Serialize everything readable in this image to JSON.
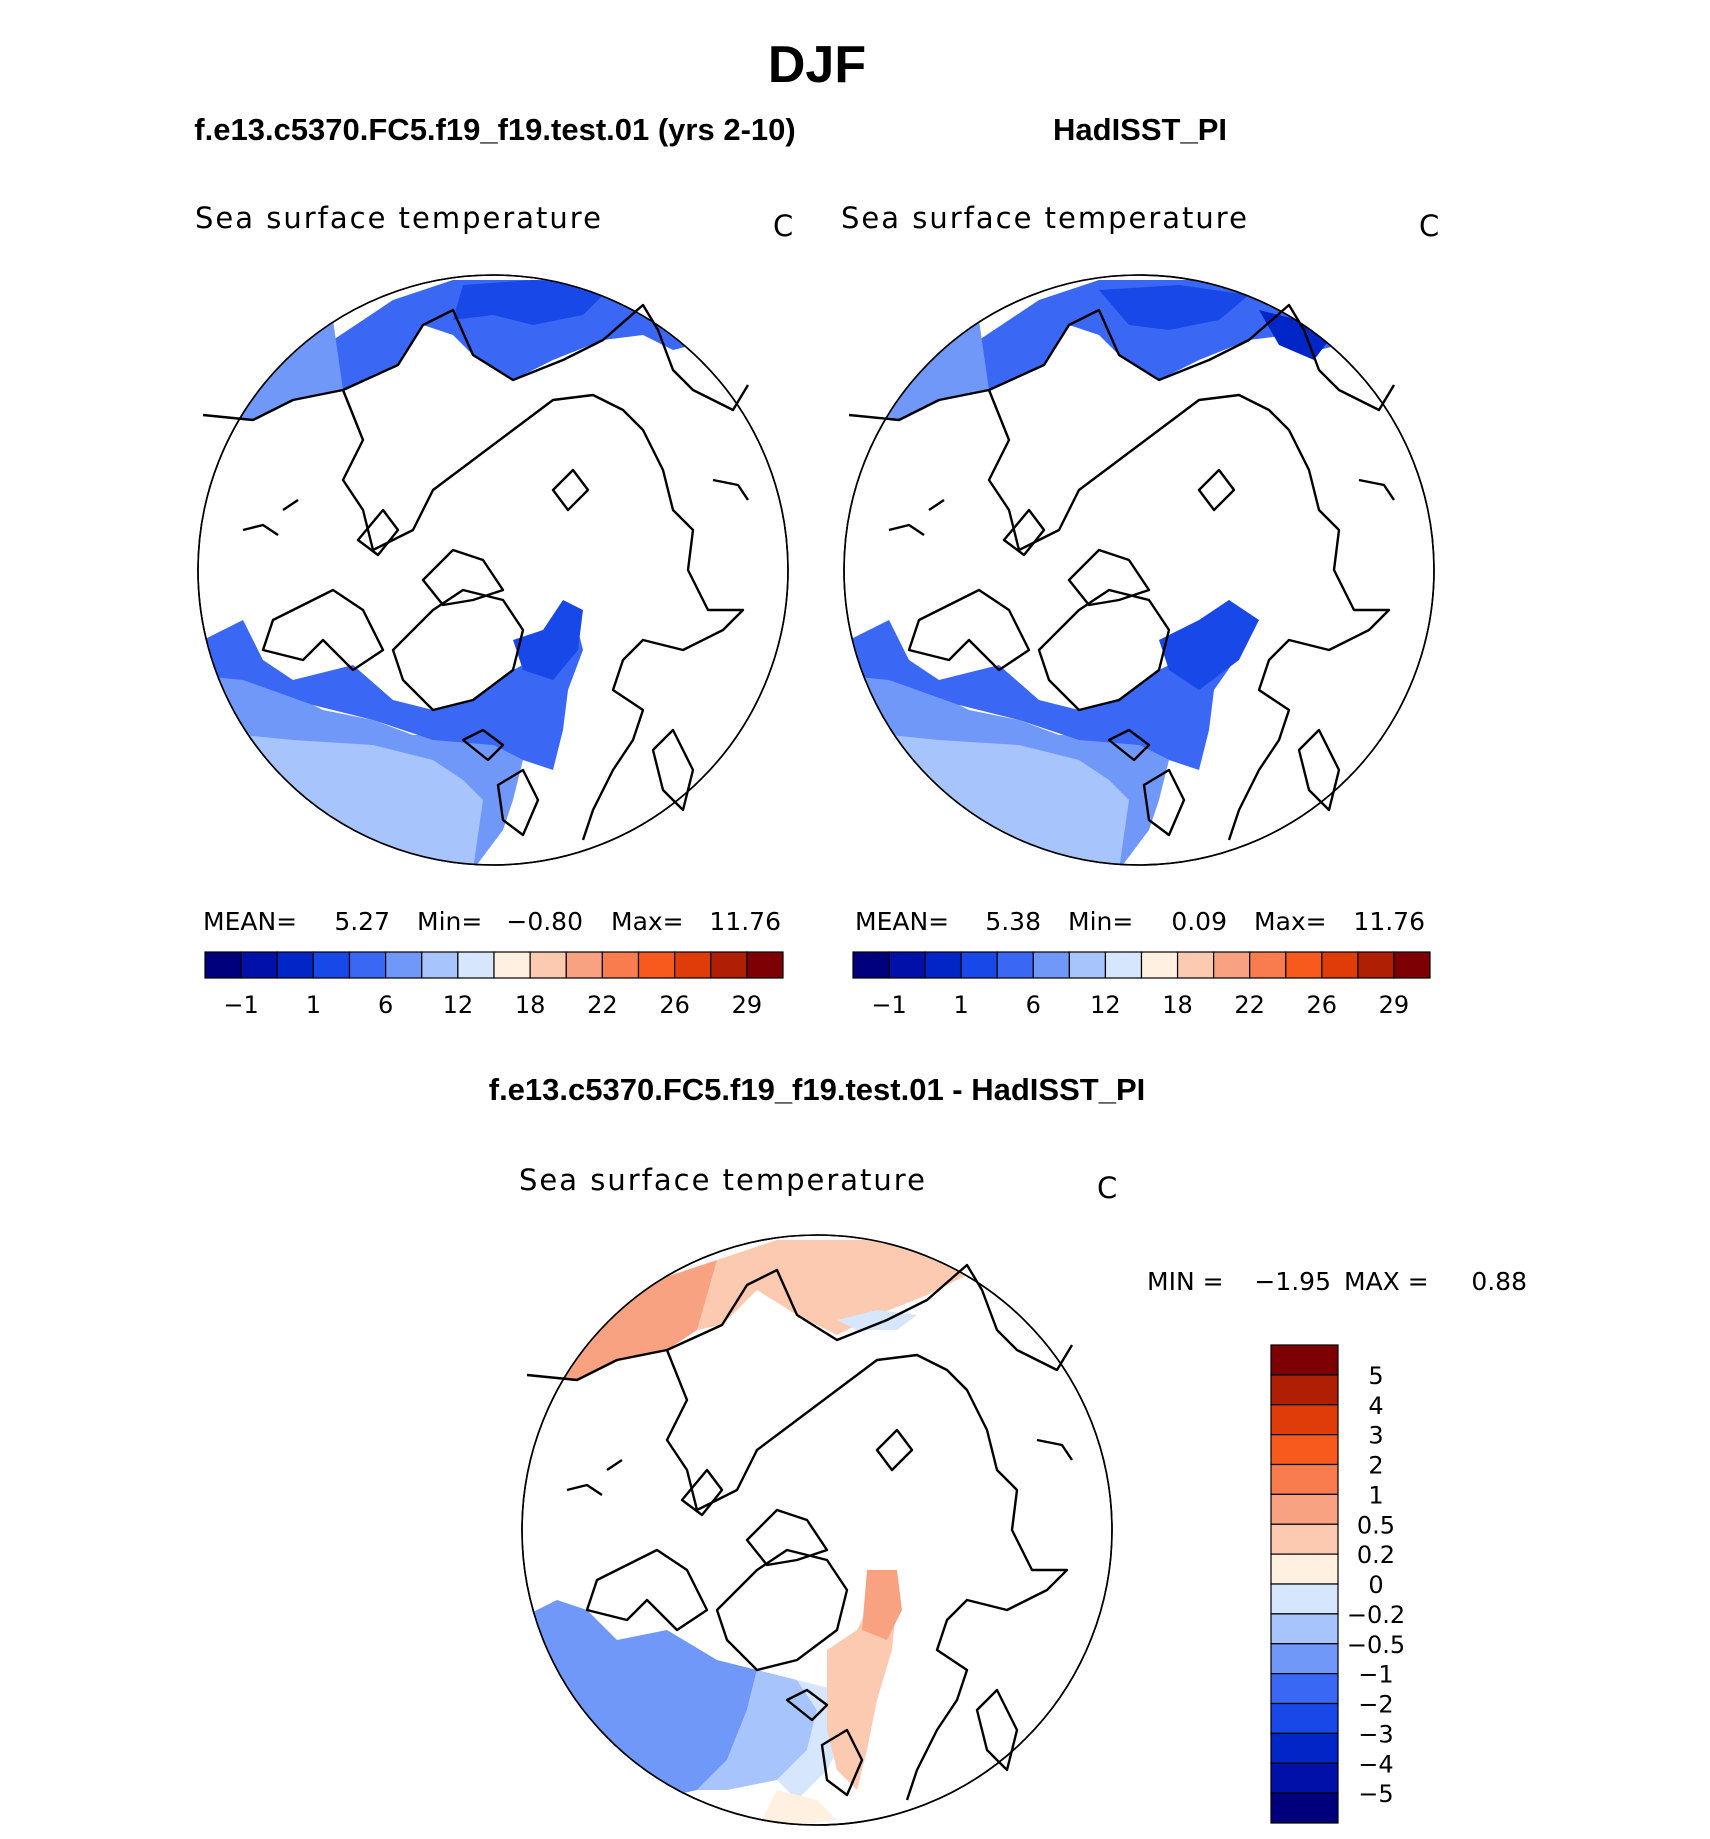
{
  "figure_title": "DJF",
  "chart_data": [
    {
      "type": "heatmap",
      "panel": "model",
      "case_title": "f.e13.c5370.FC5.f19_f19.test.01 (yrs 2-10)",
      "variable": "Sea surface temperature",
      "units": "C",
      "stats": {
        "mean_label": "MEAN=",
        "mean": "5.27",
        "min_label": "Min=",
        "min": "−0.80",
        "max_label": "Max=",
        "max": "11.76"
      },
      "colorbar": {
        "orientation": "horizontal",
        "levels": [
          -1,
          1,
          6,
          12,
          18,
          22,
          26,
          29
        ],
        "tick_labels": [
          "−1",
          "1",
          "6",
          "12",
          "18",
          "22",
          "26",
          "29"
        ],
        "colors": [
          "#00007c",
          "#0010a8",
          "#0026c8",
          "#1848e8",
          "#3a68f4",
          "#7098f8",
          "#a8c4fc",
          "#d6e6fc",
          "#fff0e0",
          "#fccab0",
          "#f8a282",
          "#f87c4e",
          "#f85a1e",
          "#e03c0a",
          "#b01e04",
          "#7c0004"
        ]
      }
    },
    {
      "type": "heatmap",
      "panel": "observations",
      "case_title": "HadISST_PI",
      "variable": "Sea surface temperature",
      "units": "C",
      "stats": {
        "mean_label": "MEAN=",
        "mean": "5.38",
        "min_label": "Min=",
        "min": "0.09",
        "max_label": "Max=",
        "max": "11.76"
      },
      "colorbar": {
        "orientation": "horizontal",
        "levels": [
          -1,
          1,
          6,
          12,
          18,
          22,
          26,
          29
        ],
        "tick_labels": [
          "−1",
          "1",
          "6",
          "12",
          "18",
          "22",
          "26",
          "29"
        ],
        "colors": [
          "#00007c",
          "#0010a8",
          "#0026c8",
          "#1848e8",
          "#3a68f4",
          "#7098f8",
          "#a8c4fc",
          "#d6e6fc",
          "#fff0e0",
          "#fccab0",
          "#f8a282",
          "#f87c4e",
          "#f85a1e",
          "#e03c0a",
          "#b01e04",
          "#7c0004"
        ]
      }
    },
    {
      "type": "heatmap",
      "panel": "difference",
      "case_title": "f.e13.c5370.FC5.f19_f19.test.01 - HadISST_PI",
      "variable": "Sea surface temperature",
      "units": "C",
      "stats": {
        "min_label": "MIN =",
        "min": "−1.95",
        "max_label": "MAX =",
        "max": "0.88"
      },
      "colorbar": {
        "orientation": "vertical",
        "levels": [
          5,
          4,
          3,
          2,
          1,
          0.5,
          0.2,
          0,
          -0.2,
          -0.5,
          -1,
          -2,
          -3,
          -4,
          -5
        ],
        "tick_labels": [
          "5",
          "4",
          "3",
          "2",
          "1",
          "0.5",
          "0.2",
          "0",
          "−0.2",
          "−0.5",
          "−1",
          "−2",
          "−3",
          "−4",
          "−5"
        ],
        "colors": [
          "#7c0004",
          "#b01e04",
          "#e03c0a",
          "#f85a1e",
          "#f87c4e",
          "#f8a282",
          "#fccab0",
          "#fff0e0",
          "#d6e6fc",
          "#a8c4fc",
          "#7098f8",
          "#3a68f4",
          "#1848e8",
          "#0026c8",
          "#0010a8",
          "#00007c"
        ]
      }
    }
  ]
}
